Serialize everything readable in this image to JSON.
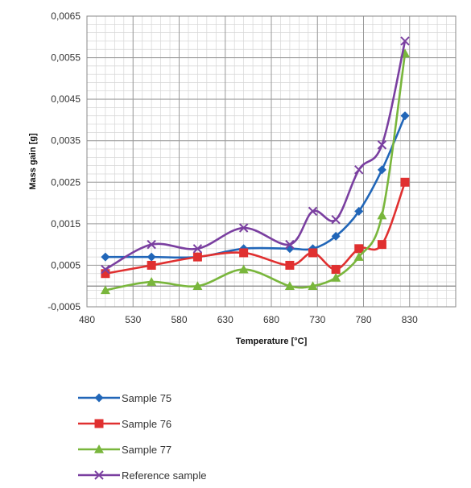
{
  "chart_data": {
    "type": "line",
    "title": "",
    "xlabel": "Temperature [°C]",
    "ylabel": "Mass gain [g]",
    "xlim": [
      480,
      880
    ],
    "ylim": [
      -0.0005,
      0.0065
    ],
    "xticks": [
      480,
      530,
      580,
      630,
      680,
      730,
      780,
      830
    ],
    "yticks": [
      -0.0005,
      0.0005,
      0.0015,
      0.0025,
      0.0035,
      0.0045,
      0.0055,
      0.0065
    ],
    "xtick_labels": [
      "480",
      "530",
      "580",
      "630",
      "680",
      "730",
      "780",
      "830"
    ],
    "ytick_labels": [
      "-0,0005",
      "0,0005",
      "0,0015",
      "0,0025",
      "0,0035",
      "0,0045",
      "0,0055",
      "0,0065"
    ],
    "grid": true,
    "legend_position": "bottom",
    "x": [
      500,
      550,
      600,
      650,
      700,
      725,
      750,
      775,
      800,
      825
    ],
    "series": [
      {
        "name": "Sample 75",
        "color": "#2166b8",
        "marker": "diamond",
        "values": [
          0.0007,
          0.0007,
          0.0007,
          0.0009,
          0.0009,
          0.0009,
          0.0012,
          0.0018,
          0.0028,
          0.0041
        ]
      },
      {
        "name": "Sample 76",
        "color": "#e03030",
        "marker": "square",
        "values": [
          0.0003,
          0.0005,
          0.0007,
          0.0008,
          0.0005,
          0.0008,
          0.0004,
          0.0009,
          0.001,
          0.0025
        ]
      },
      {
        "name": "Sample 77",
        "color": "#79b63c",
        "marker": "triangle",
        "values": [
          -0.0001,
          0.0001,
          0.0,
          0.0004,
          0.0,
          0.0,
          0.0002,
          0.0007,
          0.0017,
          0.0056
        ]
      },
      {
        "name": "Reference sample",
        "color": "#7a3fa0",
        "marker": "x",
        "values": [
          0.0004,
          0.001,
          0.0009,
          0.0014,
          0.001,
          0.0018,
          0.0016,
          0.0028,
          0.0034,
          0.0059
        ]
      }
    ]
  }
}
